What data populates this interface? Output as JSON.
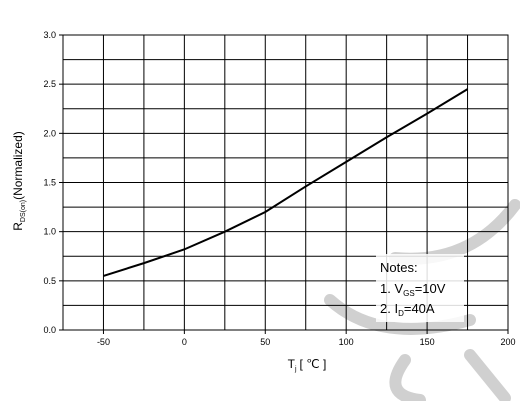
{
  "chart_data": {
    "type": "line",
    "xlabel": {
      "main": "T",
      "sub": "j",
      "unit": "[ ℃ ]"
    },
    "ylabel": {
      "main": "R",
      "sub": "DS(on)",
      "rest": "(Normalized)"
    },
    "xlim": [
      -75,
      200
    ],
    "ylim": [
      0.0,
      3.0
    ],
    "xticks": [
      -50,
      0,
      50,
      100,
      150,
      200
    ],
    "xtick_labels": [
      "-50",
      "0",
      "50",
      "100",
      "150",
      "200"
    ],
    "yticks": [
      0.0,
      0.5,
      1.0,
      1.5,
      2.0,
      2.5,
      3.0
    ],
    "ytick_labels": [
      "0.0",
      "0.5",
      "1.0",
      "1.5",
      "2.0",
      "2.5",
      "3.0"
    ],
    "grid": true,
    "series": [
      {
        "x": [
          -50,
          -25,
          0,
          25,
          50,
          75,
          100,
          125,
          150,
          175
        ],
        "y": [
          0.55,
          0.68,
          0.82,
          1.0,
          1.2,
          1.46,
          1.71,
          1.96,
          2.2,
          2.45
        ]
      }
    ],
    "notes": {
      "title": "Notes:",
      "line1": {
        "prefix": "1. V",
        "sub": "GS",
        "suffix": "=10V"
      },
      "line2": {
        "prefix": "2. I",
        "sub": "D",
        "suffix": "=40A"
      }
    }
  },
  "colors": {
    "line": "#000000",
    "grid": "#000000",
    "watermark": "#cfcfcf"
  },
  "watermark_icon": "curved-watermark-strokes"
}
